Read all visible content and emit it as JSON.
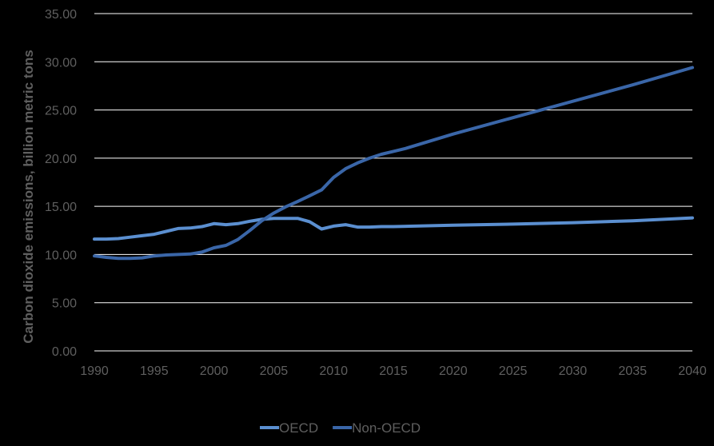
{
  "chart_data": {
    "type": "line",
    "title": "",
    "xlabel": "",
    "ylabel": "Carbon dioxide emissions, billion metric tons",
    "xlim": [
      1990,
      2040
    ],
    "ylim": [
      0,
      35
    ],
    "x_ticks": [
      "1990",
      "1995",
      "2000",
      "2005",
      "2010",
      "2015",
      "2020",
      "2025",
      "2030",
      "2035",
      "2040"
    ],
    "y_ticks": [
      "0.00",
      "5.00",
      "10.00",
      "15.00",
      "20.00",
      "25.00",
      "30.00",
      "35.00"
    ],
    "grid": "horizontal",
    "legend_position": "bottom",
    "series": [
      {
        "name": "OECD",
        "color": "#5b8fd0",
        "x": [
          1990,
          1991,
          1992,
          1993,
          1994,
          1995,
          1996,
          1997,
          1998,
          1999,
          2000,
          2001,
          2002,
          2003,
          2004,
          2005,
          2006,
          2007,
          2008,
          2009,
          2010,
          2011,
          2012,
          2013,
          2014,
          2015,
          2020,
          2025,
          2030,
          2035,
          2040
        ],
        "values": [
          11.6,
          11.6,
          11.65,
          11.8,
          11.95,
          12.1,
          12.4,
          12.7,
          12.75,
          12.9,
          13.2,
          13.1,
          13.2,
          13.45,
          13.65,
          13.75,
          13.75,
          13.75,
          13.4,
          12.65,
          12.95,
          13.1,
          12.85,
          12.85,
          12.9,
          12.9,
          13.05,
          13.15,
          13.3,
          13.5,
          13.8
        ]
      },
      {
        "name": "Non-OECD",
        "color": "#3a66a8",
        "x": [
          1990,
          1991,
          1992,
          1993,
          1994,
          1995,
          1996,
          1997,
          1998,
          1999,
          2000,
          2001,
          2002,
          2003,
          2004,
          2005,
          2006,
          2007,
          2008,
          2009,
          2010,
          2011,
          2012,
          2013,
          2014,
          2015,
          2016,
          2020,
          2025,
          2030,
          2035,
          2040
        ],
        "values": [
          9.85,
          9.7,
          9.6,
          9.6,
          9.65,
          9.85,
          9.95,
          10.0,
          10.05,
          10.25,
          10.7,
          10.95,
          11.55,
          12.5,
          13.5,
          14.3,
          14.95,
          15.5,
          16.1,
          16.7,
          18.0,
          18.9,
          19.5,
          20.0,
          20.4,
          20.7,
          21.0,
          22.5,
          24.2,
          25.9,
          27.6,
          29.4
        ]
      }
    ]
  }
}
